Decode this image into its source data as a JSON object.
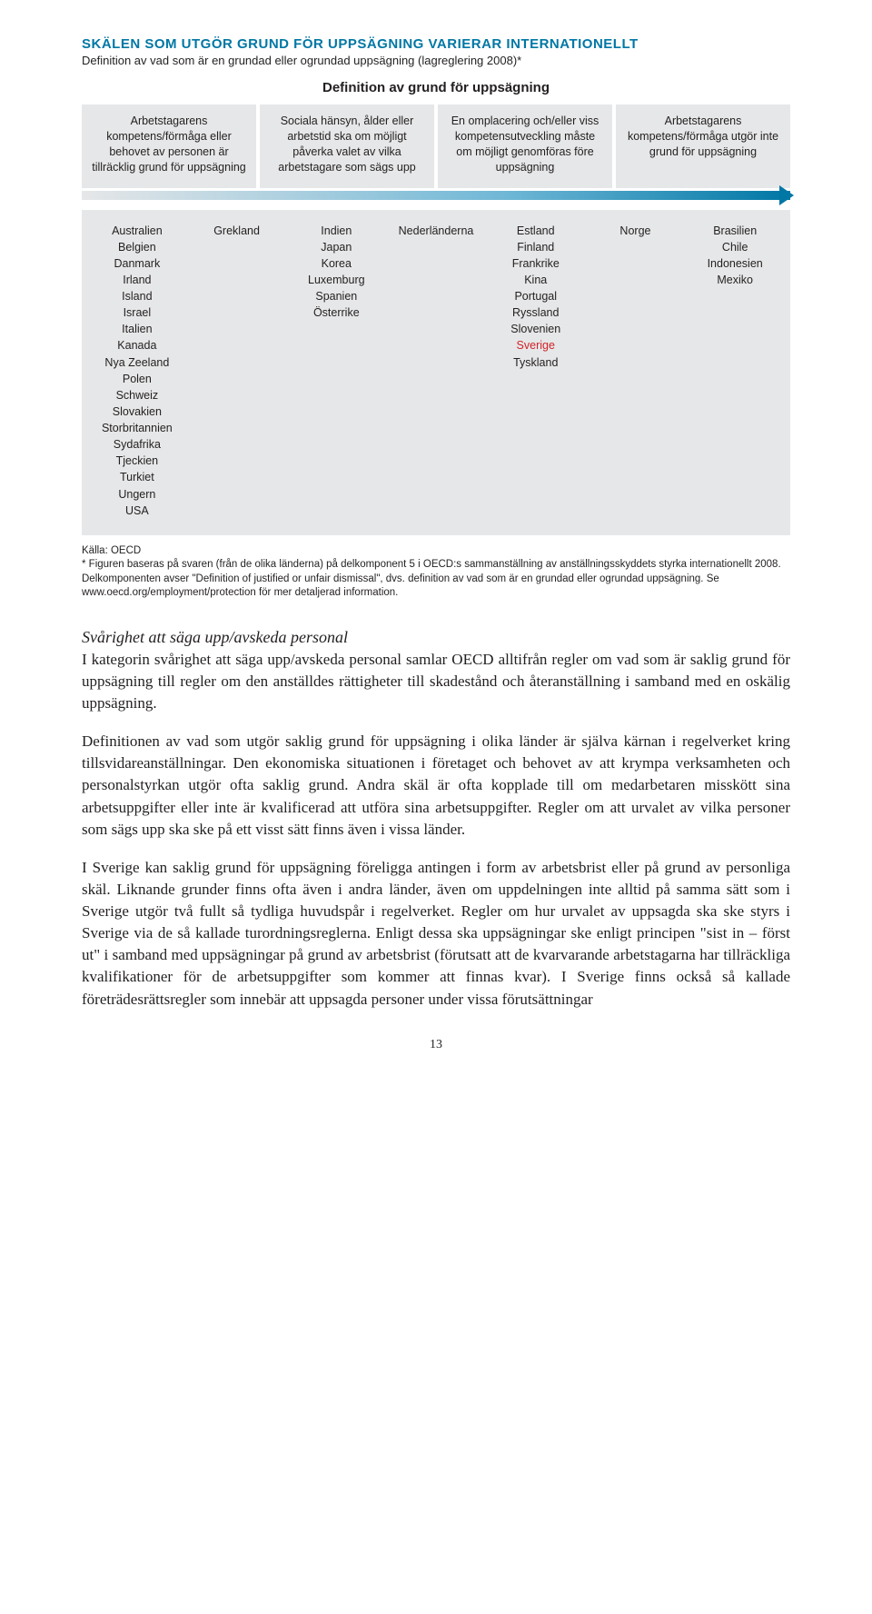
{
  "colors": {
    "accent": "#0077a5",
    "grey_bg": "#e6e7e8",
    "text": "#231f20",
    "red": "#d1232a"
  },
  "chart": {
    "title": "SKÄLEN SOM UTGÖR GRUND FÖR UPPSÄGNING VARIERAR INTERNATIONELLT",
    "subtitle": "Definition av vad som är en grundad eller ogrundad uppsägning (lagreglering 2008)*",
    "definition_heading": "Definition av grund för uppsägning",
    "criteria": [
      "Arbetstagarens kompetens/förmåga eller behovet av personen är tillräcklig grund för uppsägning",
      "Sociala hänsyn, ålder eller arbetstid ska om möjligt påverka valet av vilka arbetstagare som sägs upp",
      "En omplacering och/eller viss kompetensutveckling måste om möjligt genomföras före uppsägning",
      "Arbetstagarens kompetens/förmåga utgör inte grund för uppsägning"
    ],
    "columns": [
      {
        "items": [
          "Australien",
          "Belgien",
          "Danmark",
          "Irland",
          "Island",
          "Israel",
          "Italien",
          "Kanada",
          "Nya Zeeland",
          "Polen",
          "Schweiz",
          "Slovakien",
          "Storbritannien",
          "Sydafrika",
          "Tjeckien",
          "Turkiet",
          "Ungern",
          "USA"
        ]
      },
      {
        "items": [
          "Grekland"
        ]
      },
      {
        "items": [
          "Indien",
          "Japan",
          "Korea",
          "Luxemburg",
          "Spanien",
          "Österrike"
        ]
      },
      {
        "items": [
          "Nederländerna"
        ]
      },
      {
        "items": [
          "Estland",
          "Finland",
          "Frankrike",
          "Kina",
          "Portugal",
          "Ryssland",
          "Slovenien",
          "Sverige",
          "Tyskland"
        ],
        "highlight_index": 7
      },
      {
        "items": [
          "Norge"
        ]
      },
      {
        "items": [
          "Brasilien",
          "Chile",
          "Indonesien",
          "Mexiko"
        ]
      }
    ],
    "footnote_label": "Källa: OECD",
    "footnote_body": "* Figuren baseras på svaren (från de olika länderna) på delkomponent 5 i OECD:s sammanställning av anställningsskyddets styrka internationellt 2008. Delkomponenten avser \"Definition of justified or unfair dismissal\", dvs. definition av vad som är en grundad eller ogrundad uppsägning. Se www.oecd.org/employment/protection för mer detaljerad information."
  },
  "body": {
    "heading": "Svårighet att säga upp/avskeda personal",
    "p1": "I kategorin svårighet att säga upp/avskeda personal samlar OECD alltifrån regler om vad som är saklig grund för uppsägning till regler om den anställdes rättigheter till skadestånd och återanställning i samband med en oskälig uppsägning.",
    "p2": "Definitionen av vad som utgör saklig grund för uppsägning i olika länder är själva kärnan i regelverket kring tillsvidareanställningar. Den ekonomiska situationen i företaget och behovet av att krympa verksamheten och personalstyrkan utgör ofta saklig grund. Andra skäl är ofta kopplade till om medarbetaren misskött sina arbetsuppgifter eller inte är kvalificerad att utföra sina arbetsuppgifter. Regler om att urvalet av vilka personer som sägs upp ska ske på ett visst sätt finns även i vissa länder.",
    "p3": "I Sverige kan saklig grund för uppsägning föreligga antingen i form av arbetsbrist eller på grund av personliga skäl. Liknande grunder finns ofta även i andra länder, även om uppdelningen inte alltid på samma sätt som i Sverige utgör två fullt så tydliga huvudspår i regelverket.  Regler om hur urvalet av uppsagda ska ske styrs i Sverige via de så kallade turordningsreglerna. Enligt dessa ska uppsägningar ske enligt principen \"sist in – först ut\" i samband med uppsägningar på grund av arbetsbrist (förutsatt att de kvarvarande arbetstagarna har tillräckliga kvalifikationer för de arbetsuppgifter som kommer att finnas kvar). I Sverige finns också så kallade företrädesrättsregler som innebär att uppsagda personer under vissa förutsättningar"
  },
  "page_number": "13"
}
